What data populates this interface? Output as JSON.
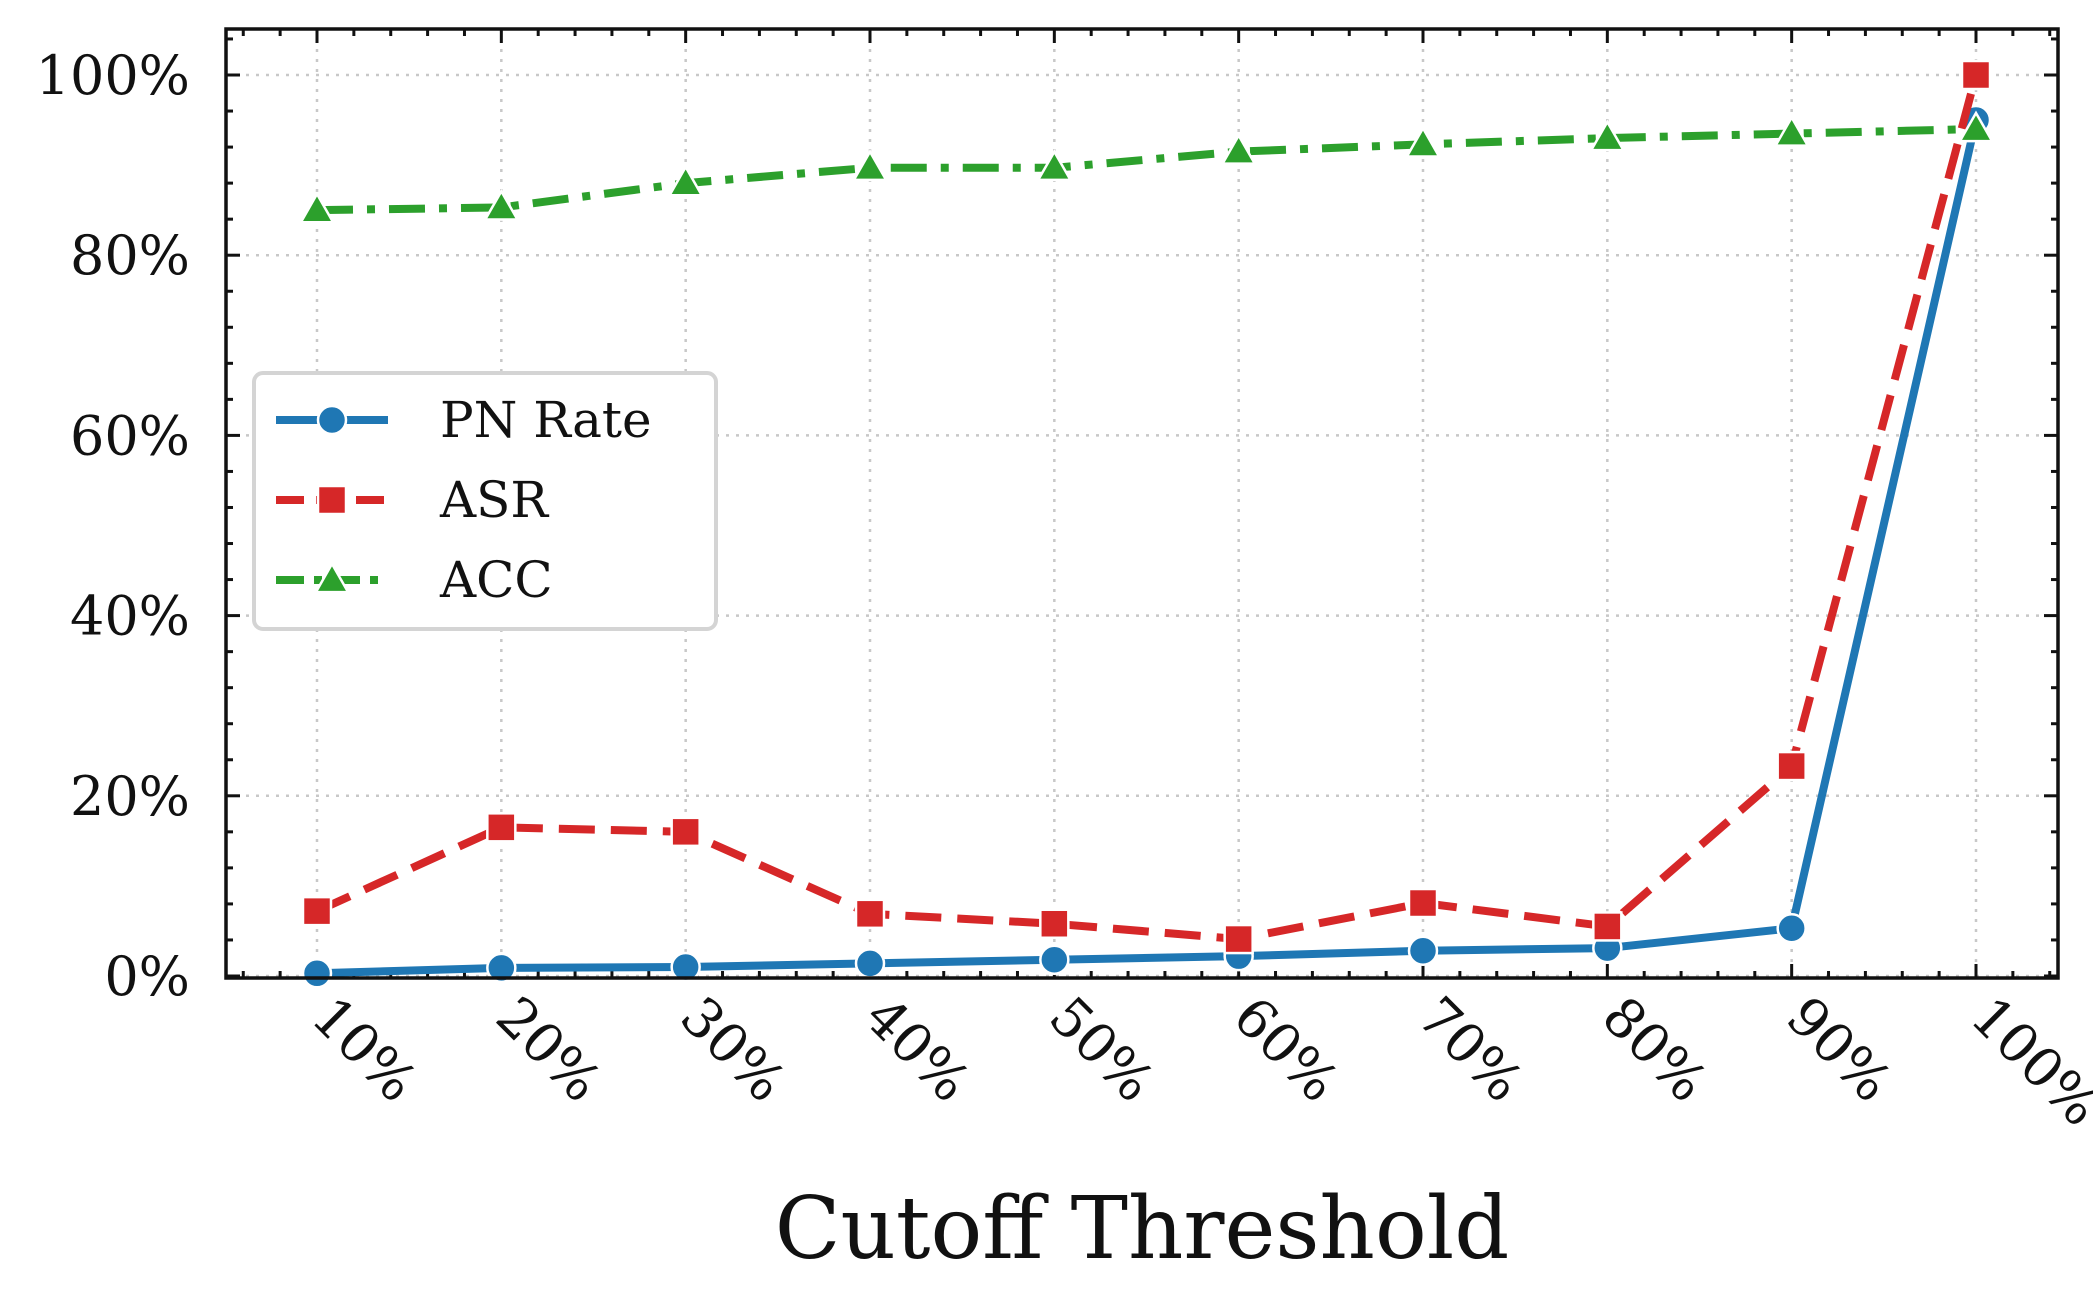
{
  "chart_data": {
    "type": "line",
    "title": "",
    "xlabel": "Cutoff Threshold",
    "ylabel": "",
    "categories": [
      "10%",
      "20%",
      "30%",
      "40%",
      "50%",
      "60%",
      "70%",
      "80%",
      "90%",
      "100%"
    ],
    "y_ticks": [
      "0%",
      "20%",
      "40%",
      "60%",
      "80%",
      "100%"
    ],
    "ylim": [
      0,
      105
    ],
    "grid": true,
    "legend_position": "center-left",
    "series": [
      {
        "name": "PN Rate",
        "color": "#1f77b4",
        "marker": "circle",
        "line_style": "solid",
        "values": [
          0.3,
          0.9,
          1.0,
          1.4,
          1.8,
          2.2,
          2.8,
          3.1,
          5.3,
          95.0
        ]
      },
      {
        "name": "ASR",
        "color": "#d62728",
        "marker": "square",
        "line_style": "dashed",
        "values": [
          7.2,
          16.5,
          16.0,
          6.9,
          5.8,
          4.1,
          8.1,
          5.5,
          23.3,
          100.0
        ]
      },
      {
        "name": "ACC",
        "color": "#2ca02c",
        "marker": "triangle",
        "line_style": "dashdot",
        "values": [
          85.0,
          85.3,
          88.0,
          89.7,
          89.7,
          91.5,
          92.3,
          93.0,
          93.5,
          94.0
        ]
      }
    ]
  }
}
